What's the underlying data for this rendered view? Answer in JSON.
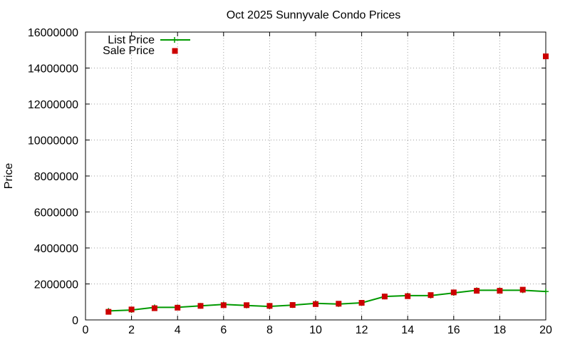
{
  "chart_data": {
    "type": "line",
    "title": "Oct 2025 Sunnyvale Condo Prices",
    "xlabel": "",
    "ylabel": "Price",
    "xlim": [
      0,
      20
    ],
    "ylim": [
      0,
      16000000
    ],
    "x_ticks": [
      "0",
      "2",
      "4",
      "6",
      "8",
      "10",
      "12",
      "14",
      "16",
      "18",
      "20"
    ],
    "y_ticks": [
      "0",
      "2000000",
      "4000000",
      "6000000",
      "8000000",
      "10000000",
      "12000000",
      "14000000",
      "16000000"
    ],
    "grid": true,
    "legend_position": "top-left",
    "x": [
      1,
      2,
      3,
      4,
      5,
      6,
      7,
      8,
      9,
      10,
      11,
      12,
      13,
      14,
      15,
      16,
      17,
      18,
      19,
      20
    ],
    "series": [
      {
        "name": "List Price",
        "style": "line",
        "color": "#009900",
        "values": [
          500000,
          550000,
          700000,
          700000,
          780000,
          860000,
          800000,
          750000,
          820000,
          920000,
          880000,
          950000,
          1300000,
          1350000,
          1350000,
          1500000,
          1650000,
          1650000,
          1650000,
          1580000
        ]
      },
      {
        "name": "Sale Price",
        "style": "points",
        "color": "#cc0000",
        "values": [
          450000,
          580000,
          650000,
          680000,
          780000,
          820000,
          820000,
          780000,
          830000,
          880000,
          900000,
          950000,
          1300000,
          1320000,
          1380000,
          1530000,
          1620000,
          1620000,
          1680000,
          14650000
        ]
      }
    ]
  }
}
